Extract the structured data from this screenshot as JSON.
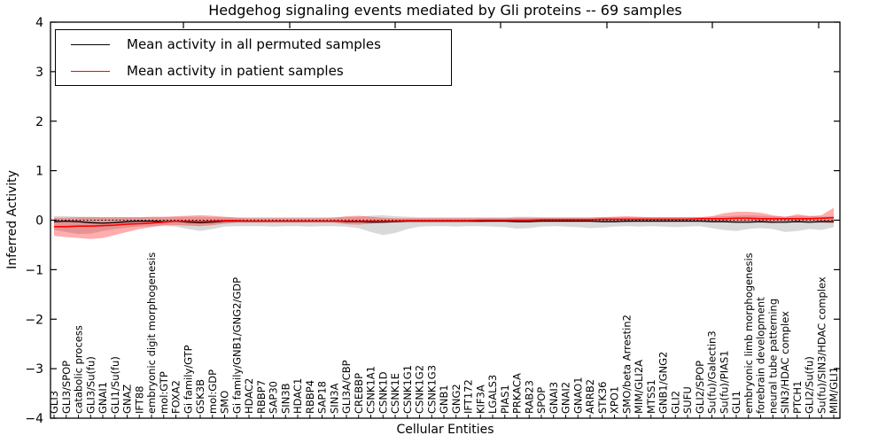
{
  "chart_data": {
    "type": "line",
    "title": "Hedgehog signaling events mediated by Gli proteins -- 69 samples",
    "xlabel": "Cellular Entities",
    "ylabel": "Inferred Activity",
    "ylim": [
      -4,
      4
    ],
    "yticks": [
      4,
      3,
      2,
      1,
      0,
      -1,
      -2,
      -3,
      -4
    ],
    "ytick_labels": [
      "4",
      "3",
      "2",
      "1",
      "0",
      "−1",
      "−2",
      "−3",
      "−4"
    ],
    "grid": false,
    "legend_position": "upper left",
    "categories": [
      "GLI3",
      "GLI3/SPOP",
      "catabolic process",
      "GLI3/Su(fu)",
      "GNAI1",
      "GLI1/Su(fu)",
      "GNAZ",
      "IFT88",
      "embryonic digit morphogenesis",
      "mol:GTP",
      "FOXA2",
      "Gi family/GTP",
      "GSK3B",
      "mol:GDP",
      "SMO",
      "Gi family/GNB1/GNG2/GDP",
      "HDAC2",
      "RBBP7",
      "SAP30",
      "SIN3B",
      "HDAC1",
      "RBBP4",
      "SAP18",
      "SIN3A",
      "GLI3A/CBP",
      "CREBBP",
      "CSNK1A1",
      "CSNK1D",
      "CSNK1E",
      "CSNK1G1",
      "CSNK1G2",
      "CSNK1G3",
      "GNB1",
      "GNG2",
      "IFT172",
      "KIF3A",
      "LGALS3",
      "PIAS1",
      "PRKACA",
      "RAB23",
      "SPOP",
      "GNAI3",
      "GNAI2",
      "GNAO1",
      "ARRB2",
      "STK36",
      "XPO1",
      "SMO/beta Arrestin2",
      "MIM/GLI2A",
      "MTSS1",
      "GNB1/GNG2",
      "GLI2",
      "SUFU",
      "GLI2/SPOP",
      "Su(fu)/Galectin3",
      "Su(fu)/PIAS1",
      "GLI1",
      "embryonic limb morphogenesis",
      "forebrain development",
      "neural tube patterning",
      "SIN3/HDAC complex",
      "PTCH1",
      "GLI2/Su(fu)",
      "Su(fu)/SIN3/HDAC complex",
      "MIM/GLI1"
    ],
    "series": [
      {
        "name": "Mean activity in all permuted samples",
        "color": "#000000",
        "style": "solid",
        "values": [
          -0.03,
          -0.02,
          -0.03,
          -0.05,
          -0.06,
          -0.05,
          -0.03,
          -0.02,
          -0.02,
          -0.03,
          -0.02,
          -0.04,
          -0.05,
          -0.04,
          -0.02,
          -0.02,
          -0.02,
          -0.02,
          -0.02,
          -0.02,
          -0.02,
          -0.02,
          -0.02,
          -0.02,
          -0.03,
          -0.03,
          -0.04,
          -0.04,
          -0.03,
          -0.02,
          -0.02,
          -0.02,
          -0.02,
          -0.02,
          -0.02,
          -0.02,
          -0.02,
          -0.02,
          -0.03,
          -0.03,
          -0.02,
          -0.02,
          -0.02,
          -0.02,
          -0.02,
          -0.03,
          -0.03,
          -0.02,
          -0.02,
          -0.02,
          -0.02,
          -0.02,
          -0.02,
          -0.02,
          -0.03,
          -0.03,
          -0.04,
          -0.04,
          -0.03,
          -0.04,
          -0.04,
          -0.03,
          -0.04,
          -0.03,
          -0.03
        ]
      },
      {
        "name": "Mean activity in patient samples",
        "color": "#ff0000",
        "style": "solid",
        "values": [
          -0.13,
          -0.13,
          -0.12,
          -0.12,
          -0.11,
          -0.1,
          -0.08,
          -0.07,
          -0.06,
          -0.04,
          -0.02,
          -0.02,
          -0.03,
          -0.02,
          -0.01,
          -0.01,
          -0.02,
          -0.02,
          -0.02,
          -0.02,
          -0.02,
          -0.02,
          -0.02,
          -0.02,
          -0.02,
          -0.02,
          -0.02,
          -0.02,
          -0.02,
          -0.01,
          -0.01,
          -0.01,
          -0.01,
          -0.01,
          -0.01,
          0.0,
          0.0,
          0.0,
          0.0,
          0.0,
          0.01,
          0.01,
          0.01,
          0.01,
          0.01,
          0.02,
          0.02,
          0.02,
          0.02,
          0.02,
          0.02,
          0.02,
          0.02,
          0.03,
          0.03,
          0.03,
          0.04,
          0.04,
          0.03,
          0.03,
          0.03,
          0.03,
          0.03,
          0.04,
          0.05
        ]
      }
    ],
    "bands": [
      {
        "name": "permuted-samples-range",
        "color": "#aaaaaa",
        "opacity": 0.45,
        "lower": [
          -0.2,
          -0.24,
          -0.28,
          -0.27,
          -0.22,
          -0.18,
          -0.15,
          -0.13,
          -0.12,
          -0.12,
          -0.13,
          -0.18,
          -0.22,
          -0.18,
          -0.13,
          -0.12,
          -0.12,
          -0.12,
          -0.13,
          -0.12,
          -0.12,
          -0.13,
          -0.12,
          -0.12,
          -0.13,
          -0.16,
          -0.24,
          -0.3,
          -0.26,
          -0.18,
          -0.13,
          -0.12,
          -0.12,
          -0.13,
          -0.12,
          -0.12,
          -0.13,
          -0.14,
          -0.17,
          -0.16,
          -0.13,
          -0.12,
          -0.13,
          -0.14,
          -0.16,
          -0.15,
          -0.13,
          -0.12,
          -0.13,
          -0.12,
          -0.13,
          -0.14,
          -0.13,
          -0.12,
          -0.16,
          -0.2,
          -0.22,
          -0.18,
          -0.16,
          -0.18,
          -0.24,
          -0.22,
          -0.18,
          -0.2,
          -0.14
        ],
        "upper": [
          0.08,
          0.08,
          0.07,
          0.07,
          0.06,
          0.06,
          0.06,
          0.06,
          0.06,
          0.06,
          0.06,
          0.07,
          0.07,
          0.06,
          0.06,
          0.06,
          0.06,
          0.06,
          0.06,
          0.06,
          0.06,
          0.06,
          0.06,
          0.06,
          0.06,
          0.07,
          0.09,
          0.1,
          0.08,
          0.07,
          0.06,
          0.06,
          0.06,
          0.06,
          0.06,
          0.06,
          0.06,
          0.06,
          0.07,
          0.07,
          0.06,
          0.06,
          0.06,
          0.06,
          0.06,
          0.06,
          0.06,
          0.06,
          0.06,
          0.06,
          0.06,
          0.06,
          0.06,
          0.06,
          0.07,
          0.08,
          0.09,
          0.1,
          0.09,
          0.08,
          0.08,
          0.08,
          0.09,
          0.07,
          0.08
        ]
      },
      {
        "name": "patient-samples-range",
        "color": "#ff0000",
        "opacity": 0.32,
        "lower": [
          -0.32,
          -0.34,
          -0.36,
          -0.38,
          -0.36,
          -0.3,
          -0.24,
          -0.18,
          -0.14,
          -0.1,
          -0.1,
          -0.11,
          -0.12,
          -0.1,
          -0.07,
          -0.05,
          -0.05,
          -0.05,
          -0.05,
          -0.05,
          -0.05,
          -0.05,
          -0.05,
          -0.05,
          -0.08,
          -0.09,
          -0.07,
          -0.05,
          -0.05,
          -0.04,
          -0.04,
          -0.04,
          -0.04,
          -0.04,
          -0.04,
          -0.04,
          -0.03,
          -0.03,
          -0.03,
          -0.03,
          -0.03,
          -0.03,
          -0.03,
          -0.03,
          -0.03,
          -0.03,
          -0.03,
          -0.04,
          -0.03,
          -0.03,
          -0.03,
          -0.03,
          -0.02,
          -0.02,
          -0.03,
          -0.04,
          -0.04,
          -0.04,
          -0.05,
          -0.06,
          -0.03,
          -0.03,
          -0.04,
          -0.05,
          -0.06
        ],
        "upper": [
          0.05,
          0.05,
          0.06,
          0.06,
          0.06,
          0.06,
          0.06,
          0.06,
          0.07,
          0.07,
          0.08,
          0.09,
          0.1,
          0.09,
          0.07,
          0.05,
          0.04,
          0.04,
          0.04,
          0.04,
          0.04,
          0.04,
          0.04,
          0.05,
          0.08,
          0.09,
          0.07,
          0.05,
          0.04,
          0.04,
          0.04,
          0.04,
          0.04,
          0.04,
          0.04,
          0.04,
          0.04,
          0.04,
          0.05,
          0.05,
          0.05,
          0.05,
          0.05,
          0.05,
          0.05,
          0.06,
          0.07,
          0.08,
          0.07,
          0.06,
          0.06,
          0.06,
          0.06,
          0.06,
          0.08,
          0.14,
          0.17,
          0.17,
          0.15,
          0.1,
          0.06,
          0.12,
          0.08,
          0.1,
          0.25
        ]
      }
    ],
    "reference_line": {
      "y": 0,
      "style": "dotted",
      "color": "#000000"
    }
  }
}
